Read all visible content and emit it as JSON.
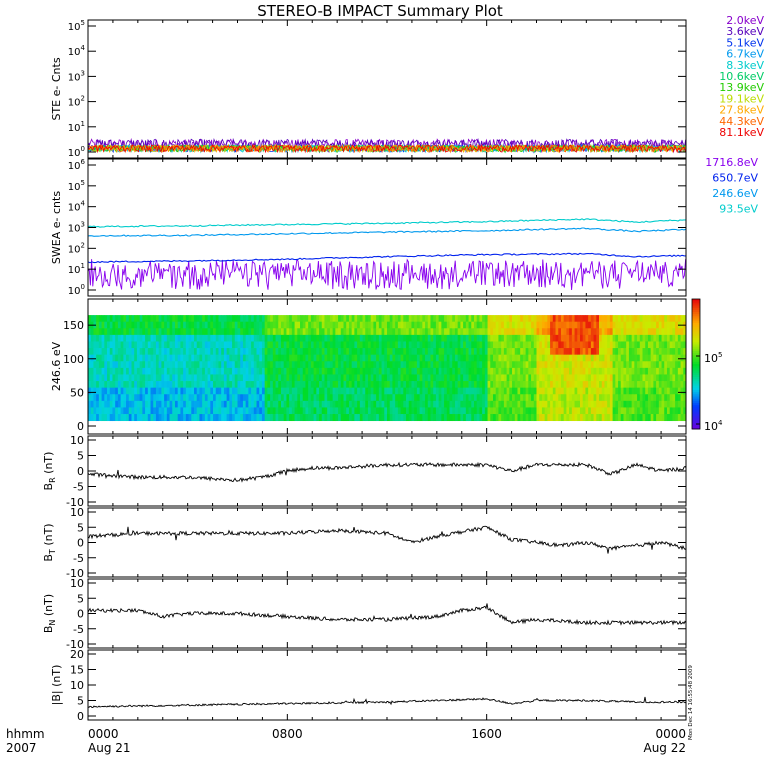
{
  "title": "STEREO-B IMPACT Summary Plot",
  "side_stamp": "Mon Dec 14 16:55:48 2009",
  "time_axis": {
    "row1_label": "hhmm",
    "row2_label": "2007",
    "ticks": [
      {
        "time": "0000",
        "date": "Aug 21"
      },
      {
        "time": "0800",
        "date": ""
      },
      {
        "time": "1600",
        "date": ""
      },
      {
        "time": "0000",
        "date": "Aug 22"
      }
    ]
  },
  "chart_data": [
    {
      "type": "line",
      "ylabel": "STE e- Cnts",
      "yscale": "log",
      "ylim": [
        1,
        100000
      ],
      "ticks": [
        "10^0",
        "10^1",
        "10^2",
        "10^3",
        "10^4",
        "10^5"
      ],
      "legend": [
        {
          "label": "2.0keV",
          "color": "#8800cc"
        },
        {
          "label": "3.6keV",
          "color": "#5500bb"
        },
        {
          "label": "5.1keV",
          "color": "#0033ee"
        },
        {
          "label": "6.7keV",
          "color": "#0099ee"
        },
        {
          "label": "8.3keV",
          "color": "#00cccc"
        },
        {
          "label": "10.6keV",
          "color": "#00cc66"
        },
        {
          "label": "13.9keV",
          "color": "#22cc00"
        },
        {
          "label": "19.1keV",
          "color": "#bbdd00"
        },
        {
          "label": "27.8keV",
          "color": "#ffaa00"
        },
        {
          "label": "44.3keV",
          "color": "#ff6600"
        },
        {
          "label": "81.1keV",
          "color": "#ee0000"
        }
      ]
    },
    {
      "type": "line",
      "ylabel": "SWEA e- cnts",
      "yscale": "log",
      "ylim": [
        1,
        1000000
      ],
      "ticks": [
        "10^0",
        "10^1",
        "10^2",
        "10^3",
        "10^4",
        "10^5",
        "10^6"
      ],
      "series": [
        {
          "name": "1716.8eV",
          "color": "#8800ee",
          "x_hours": [
            0,
            24
          ],
          "y": [
            3,
            3
          ]
        },
        {
          "name": "650.7eV",
          "color": "#0022ee",
          "x_hours": [
            0,
            4,
            8,
            12,
            16,
            20,
            22,
            24
          ],
          "y": [
            22,
            25,
            30,
            40,
            50,
            55,
            40,
            45
          ]
        },
        {
          "name": "246.6eV",
          "color": "#0099ee",
          "x_hours": [
            0,
            4,
            8,
            12,
            16,
            20,
            22,
            24
          ],
          "y": [
            400,
            420,
            500,
            600,
            700,
            900,
            650,
            800
          ]
        },
        {
          "name": "93.5eV",
          "color": "#00cccc",
          "x_hours": [
            0,
            4,
            8,
            12,
            16,
            20,
            22,
            24
          ],
          "y": [
            1100,
            1200,
            1400,
            1600,
            1900,
            2500,
            1800,
            2300
          ]
        }
      ]
    },
    {
      "type": "heatmap",
      "ylabel": "246.6 eV",
      "ylim": [
        0,
        180
      ],
      "ticks": [
        "0",
        "50",
        "100",
        "150"
      ],
      "colorbar_ticks": [
        "10^5",
        "10^4"
      ]
    },
    {
      "type": "line",
      "ylabel": "B_R (nT)",
      "ylabel_main": "B",
      "ylabel_sub": "R",
      "ylabel_unit": "(nT)",
      "ylim": [
        -10,
        10
      ],
      "ticks": [
        "10",
        "5",
        "0",
        "-5",
        "-10"
      ],
      "x_hours": [
        0,
        2,
        4,
        6,
        7,
        8,
        9,
        10,
        12,
        14,
        16,
        17,
        18,
        19,
        20,
        21,
        22,
        23,
        24
      ],
      "y": [
        -1,
        -2,
        -2,
        -3,
        -2,
        0,
        1,
        1,
        2,
        2,
        2,
        0,
        2,
        2,
        2,
        -1,
        2,
        0,
        1
      ]
    },
    {
      "type": "line",
      "ylabel": "B_T (nT)",
      "ylabel_main": "B",
      "ylabel_sub": "T",
      "ylabel_unit": "(nT)",
      "ylim": [
        -10,
        10
      ],
      "ticks": [
        "10",
        "5",
        "0",
        "-5",
        "-10"
      ],
      "x_hours": [
        0,
        2,
        4,
        6,
        8,
        10,
        12,
        13,
        14,
        16,
        17,
        18,
        19,
        20,
        21,
        22,
        23,
        24
      ],
      "y": [
        2,
        3,
        3,
        3,
        3,
        4,
        3,
        0,
        2,
        5,
        1,
        0,
        -1,
        0,
        -2,
        -1,
        0,
        -2
      ]
    },
    {
      "type": "line",
      "ylabel": "B_N (nT)",
      "ylabel_main": "B",
      "ylabel_sub": "N",
      "ylabel_unit": "(nT)",
      "ylim": [
        -10,
        10
      ],
      "ticks": [
        "10",
        "5",
        "0",
        "-5",
        "-10"
      ],
      "x_hours": [
        0,
        2,
        3,
        4,
        6,
        8,
        10,
        12,
        14,
        15,
        16,
        17,
        18,
        20,
        22,
        24
      ],
      "y": [
        1,
        1,
        -1,
        0,
        0,
        -1,
        -2,
        -2,
        -1,
        1,
        2,
        -3,
        -2,
        -3,
        -3,
        -3
      ]
    },
    {
      "type": "line",
      "ylabel": "|B| (nT)",
      "ylim": [
        0,
        20
      ],
      "ticks": [
        "20",
        "15",
        "10",
        "5",
        "0"
      ],
      "x_hours": [
        0,
        4,
        8,
        12,
        16,
        17,
        18,
        20,
        22,
        24
      ],
      "y": [
        3,
        3.5,
        4,
        4.5,
        5.5,
        4,
        5,
        5,
        4.5,
        4.5
      ]
    }
  ]
}
